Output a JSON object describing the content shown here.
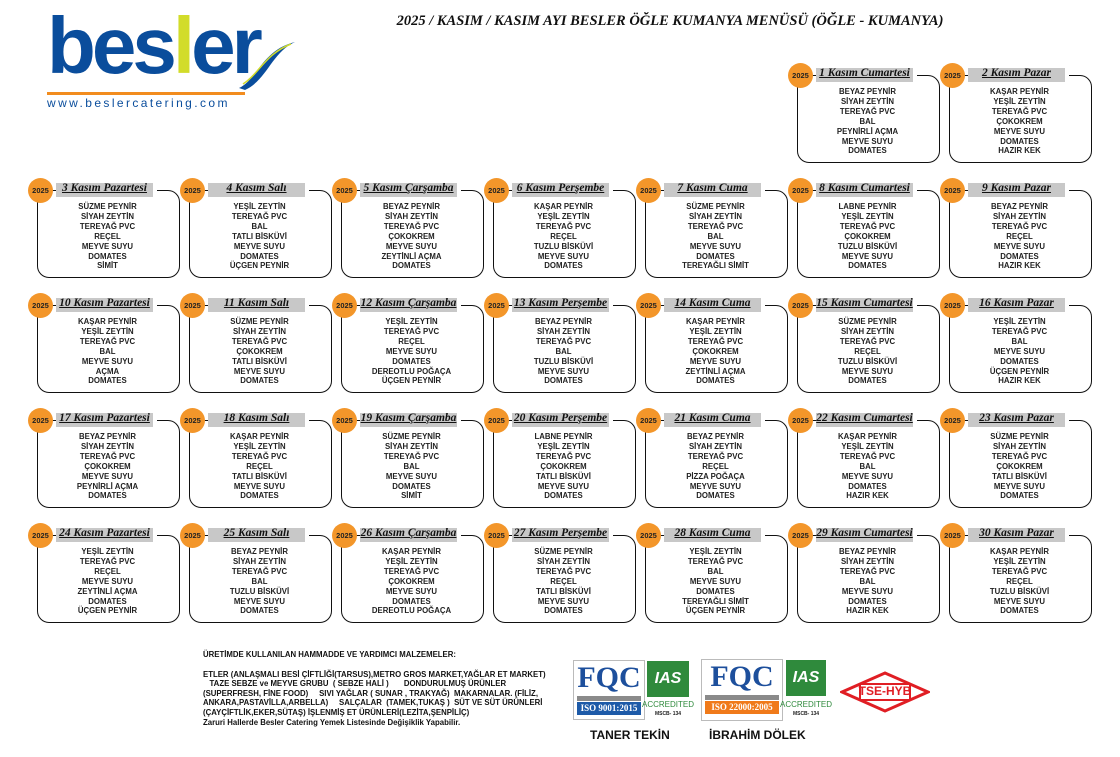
{
  "title": "2025 / KASIM / KASIM AYI BESLER ÖĞLE KUMANYA MENÜSÜ (ÖĞLE - KUMANYA)",
  "logo": {
    "text": "besler",
    "url": "www.beslercatering.com",
    "colors": {
      "blue": "#0a4d9c",
      "accent": "#d2dc2a",
      "line": "#f28c1e"
    }
  },
  "year_badge": "2025",
  "colors": {
    "badge": "#f3962a",
    "header_bar": "#c8c8c8"
  },
  "days": [
    {
      "label": "1 Kasım Cumartesi",
      "items": [
        "BEYAZ PEYNİR",
        "SİYAH ZEYTİN",
        "TEREYAĞ PVC",
        "BAL",
        "PEYNİRLİ AÇMA",
        "MEYVE SUYU",
        "DOMATES"
      ]
    },
    {
      "label": "2 Kasım Pazar",
      "items": [
        "KAŞAR PEYNİR",
        "YEŞİL ZEYTİN",
        "TEREYAĞ PVC",
        "ÇOKOKREM",
        "MEYVE SUYU",
        "DOMATES",
        "HAZIR KEK"
      ]
    },
    {
      "label": "3 Kasım Pazartesi",
      "items": [
        "SÜZME PEYNİR",
        "SİYAH ZEYTİN",
        "TEREYAĞ PVC",
        "REÇEL",
        "MEYVE SUYU",
        "DOMATES",
        "SİMİT"
      ]
    },
    {
      "label": "4 Kasım Salı",
      "items": [
        "YEŞİL ZEYTİN",
        "TEREYAĞ PVC",
        "BAL",
        "TATLI BİSKÜVİ",
        "MEYVE SUYU",
        "DOMATES",
        "ÜÇGEN PEYNİR"
      ]
    },
    {
      "label": "5 Kasım Çarşamba",
      "items": [
        "BEYAZ PEYNİR",
        "SİYAH ZEYTİN",
        "TEREYAĞ PVC",
        "ÇOKOKREM",
        "MEYVE SUYU",
        "ZEYTİNLİ AÇMA",
        "DOMATES"
      ]
    },
    {
      "label": "6 Kasım Perşembe",
      "items": [
        "KAŞAR PEYNİR",
        "YEŞİL ZEYTİN",
        "TEREYAĞ PVC",
        "REÇEL",
        "TUZLU BİSKÜVİ",
        "MEYVE SUYU",
        "DOMATES"
      ]
    },
    {
      "label": "7 Kasım Cuma",
      "items": [
        "SÜZME PEYNİR",
        "SİYAH ZEYTİN",
        "TEREYAĞ PVC",
        "BAL",
        "MEYVE SUYU",
        "DOMATES",
        "TEREYAĞLI SİMİT"
      ]
    },
    {
      "label": "8 Kasım Cumartesi",
      "items": [
        "LABNE PEYNİR",
        "YEŞİL ZEYTİN",
        "TEREYAĞ PVC",
        "ÇOKOKREM",
        "TUZLU BİSKÜVİ",
        "MEYVE SUYU",
        "DOMATES"
      ]
    },
    {
      "label": "9 Kasım Pazar",
      "items": [
        "BEYAZ PEYNİR",
        "SİYAH ZEYTİN",
        "TEREYAĞ PVC",
        "REÇEL",
        "MEYVE SUYU",
        "DOMATES",
        "HAZIR KEK"
      ]
    },
    {
      "label": "10 Kasım Pazartesi",
      "items": [
        "KAŞAR PEYNİR",
        "YEŞİL ZEYTİN",
        "TEREYAĞ PVC",
        "BAL",
        "MEYVE SUYU",
        "AÇMA",
        "DOMATES"
      ]
    },
    {
      "label": "11 Kasım Salı",
      "items": [
        "SÜZME PEYNİR",
        "SİYAH ZEYTİN",
        "TEREYAĞ PVC",
        "ÇOKOKREM",
        "TATLI BİSKÜVİ",
        "MEYVE SUYU",
        "DOMATES"
      ]
    },
    {
      "label": "12 Kasım Çarşamba",
      "items": [
        "YEŞİL ZEYTİN",
        "TEREYAĞ PVC",
        "REÇEL",
        "MEYVE SUYU",
        "DOMATES",
        "DEREOTLU POĞAÇA",
        "ÜÇGEN PEYNİR"
      ]
    },
    {
      "label": "13 Kasım Perşembe",
      "items": [
        "BEYAZ PEYNİR",
        "SİYAH ZEYTİN",
        "TEREYAĞ PVC",
        "BAL",
        "TUZLU BİSKÜVİ",
        "MEYVE SUYU",
        "DOMATES"
      ]
    },
    {
      "label": "14 Kasım Cuma",
      "items": [
        "KAŞAR PEYNİR",
        "YEŞİL ZEYTİN",
        "TEREYAĞ PVC",
        "ÇOKOKREM",
        "MEYVE SUYU",
        "ZEYTİNLİ AÇMA",
        "DOMATES"
      ]
    },
    {
      "label": "15 Kasım Cumartesi",
      "items": [
        "SÜZME PEYNİR",
        "SİYAH ZEYTİN",
        "TEREYAĞ PVC",
        "REÇEL",
        "TUZLU BİSKÜVİ",
        "MEYVE SUYU",
        "DOMATES"
      ]
    },
    {
      "label": "16 Kasım Pazar",
      "items": [
        "YEŞİL ZEYTİN",
        "TEREYAĞ PVC",
        "BAL",
        "MEYVE SUYU",
        "DOMATES",
        "ÜÇGEN PEYNİR",
        "HAZIR KEK"
      ]
    },
    {
      "label": "17 Kasım Pazartesi",
      "items": [
        "BEYAZ PEYNİR",
        "SİYAH ZEYTİN",
        "TEREYAĞ PVC",
        "ÇOKOKREM",
        "MEYVE SUYU",
        "PEYNİRLİ AÇMA",
        "DOMATES"
      ]
    },
    {
      "label": "18 Kasım Salı",
      "items": [
        "KAŞAR PEYNİR",
        "YEŞİL ZEYTİN",
        "TEREYAĞ PVC",
        "REÇEL",
        "TATLI BİSKÜVİ",
        "MEYVE SUYU",
        "DOMATES"
      ]
    },
    {
      "label": "19 Kasım Çarşamba",
      "items": [
        "SÜZME PEYNİR",
        "SİYAH ZEYTİN",
        "TEREYAĞ PVC",
        "BAL",
        "MEYVE SUYU",
        "DOMATES",
        "SİMİT"
      ]
    },
    {
      "label": "20 Kasım Perşembe",
      "items": [
        "LABNE PEYNİR",
        "YEŞİL ZEYTİN",
        "TEREYAĞ PVC",
        "ÇOKOKREM",
        "TATLI BİSKÜVİ",
        "MEYVE SUYU",
        "DOMATES"
      ]
    },
    {
      "label": "21 Kasım Cuma",
      "items": [
        "BEYAZ PEYNİR",
        "SİYAH ZEYTİN",
        "TEREYAĞ PVC",
        "REÇEL",
        "PİZZA POĞAÇA",
        "MEYVE SUYU",
        "DOMATES"
      ]
    },
    {
      "label": "22 Kasım Cumartesi",
      "items": [
        "KAŞAR PEYNİR",
        "YEŞİL ZEYTİN",
        "TEREYAĞ PVC",
        "BAL",
        "MEYVE SUYU",
        "DOMATES",
        "HAZIR KEK"
      ]
    },
    {
      "label": "23 Kasım Pazar",
      "items": [
        "SÜZME PEYNİR",
        "SİYAH ZEYTİN",
        "TEREYAĞ PVC",
        "ÇOKOKREM",
        "TATLI BİSKÜVİ",
        "MEYVE SUYU",
        "DOMATES"
      ]
    },
    {
      "label": "24 Kasım Pazartesi",
      "items": [
        "YEŞİL ZEYTİN",
        "TEREYAĞ PVC",
        "REÇEL",
        "MEYVE SUYU",
        "ZEYTİNLİ AÇMA",
        "DOMATES",
        "ÜÇGEN PEYNİR"
      ]
    },
    {
      "label": "25 Kasım Salı",
      "items": [
        "BEYAZ PEYNİR",
        "SİYAH ZEYTİN",
        "TEREYAĞ PVC",
        "BAL",
        "TUZLU BİSKÜVİ",
        "MEYVE SUYU",
        "DOMATES"
      ]
    },
    {
      "label": "26 Kasım Çarşamba",
      "items": [
        "KAŞAR PEYNİR",
        "YEŞİL ZEYTİN",
        "TEREYAĞ PVC",
        "ÇOKOKREM",
        "MEYVE SUYU",
        "DOMATES",
        "DEREOTLU POĞAÇA"
      ]
    },
    {
      "label": "27 Kasım Perşembe",
      "items": [
        "SÜZME PEYNİR",
        "SİYAH ZEYTİN",
        "TEREYAĞ PVC",
        "REÇEL",
        "TATLI BİSKÜVİ",
        "MEYVE SUYU",
        "DOMATES"
      ]
    },
    {
      "label": "28 Kasım Cuma",
      "items": [
        "YEŞİL ZEYTİN",
        "TEREYAĞ PVC",
        "BAL",
        "MEYVE SUYU",
        "DOMATES",
        "TEREYAĞLI SİMİT",
        "ÜÇGEN PEYNİR"
      ]
    },
    {
      "label": "29 Kasım Cumartesi",
      "items": [
        "BEYAZ PEYNİR",
        "SİYAH ZEYTİN",
        "TEREYAĞ PVC",
        "BAL",
        "MEYVE SUYU",
        "DOMATES",
        "HAZIR KEK"
      ]
    },
    {
      "label": "30 Kasım Pazar",
      "items": [
        "KAŞAR PEYNİR",
        "YEŞİL ZEYTİN",
        "TEREYAĞ PVC",
        "REÇEL",
        "TUZLU BİSKÜVİ",
        "MEYVE SUYU",
        "DOMATES"
      ]
    }
  ],
  "footer": {
    "heading": "ÜRETİMDE KULLANILAN HAMMADDE VE YARDIMCI MALZEMELER:",
    "lines": [
      "ETLER (ANLAŞMALI BESİ ÇİFTLİĞİ(TARSUS),METRO GROS MARKET,YAĞLAR ET MARKET)",
      "   TAZE SEBZE ve MEYVE GRUBU  ( SEBZE HALİ )       DONDURULMUŞ ÜRÜNLER",
      "(SUPERFRESH, FİNE FOOD)     SIVI YAĞLAR ( SUNAR , TRAKYAĞ)  MAKARNALAR. (FİLİZ,",
      "ANKARA,PASTAVİLLA,ARBELLA)     SALÇALAR  (TAMEK,TUKAŞ )  SÜT VE SÜT ÜRÜNLERİ",
      "(ÇAYÇİFTLİK,EKER,SÜTAŞ) İŞLENMİŞ ET ÜRÜNLERİ(LEZİTA,ŞENPİLİÇ)",
      "Zaruri Hallerde Besler Catering Yemek Listesinde Değişiklik Yapabilir."
    ]
  },
  "certs": {
    "fqc": "FQC",
    "fqc_sub": "FIRST QUALITY CERTIFICATION",
    "iso1": "ISO 9001:2015",
    "iso2": "ISO 22000:2005",
    "ias": "IAS",
    "accredited": "ACCREDITED",
    "mscb": "MSCB- 134",
    "tse": "TSE-HYB",
    "iso1_color": "#1d5aa8",
    "iso2_color": "#f07a1a"
  },
  "signatories": [
    "TANER TEKİN",
    "İBRAHİM DÖLEK"
  ]
}
